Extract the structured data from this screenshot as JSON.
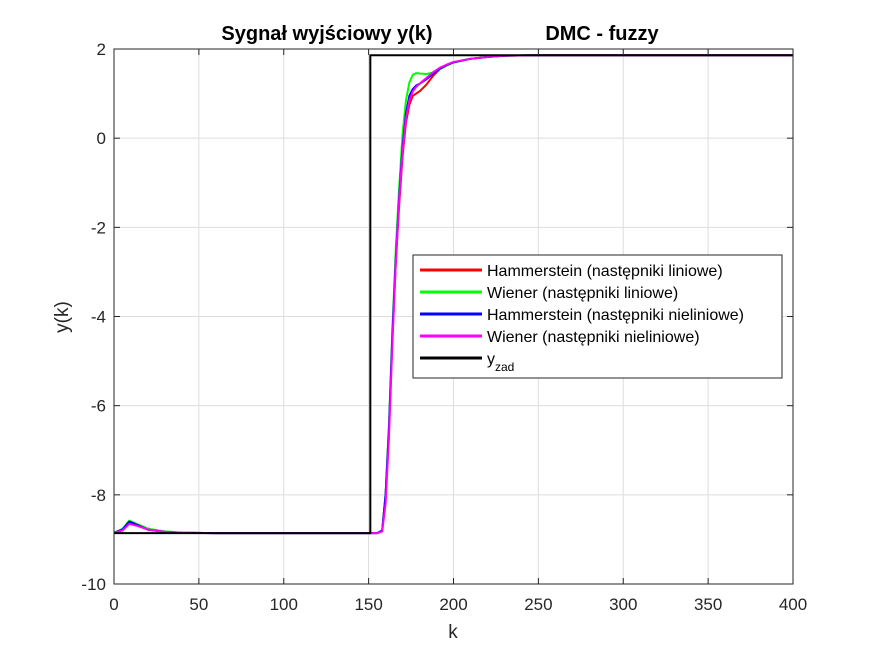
{
  "chart_data": {
    "type": "line",
    "title_left": "Sygnał wyjściowy y(k)",
    "title_right": "DMC - fuzzy",
    "xlabel": "k",
    "ylabel": "y(k)",
    "xlim": [
      0,
      400
    ],
    "ylim": [
      -10,
      2
    ],
    "xticks": [
      0,
      50,
      100,
      150,
      200,
      250,
      300,
      350,
      400
    ],
    "yticks": [
      -10,
      -8,
      -6,
      -4,
      -2,
      0,
      2
    ],
    "grid": true,
    "legend_position": "center-right",
    "series": [
      {
        "name": "Hammerstein (następniki liniowe)",
        "color": "#ff0000",
        "x": [
          0,
          5,
          9,
          14,
          20,
          30,
          40,
          60,
          100,
          150,
          155,
          158,
          160,
          162,
          164,
          166,
          168,
          170,
          172,
          174,
          176,
          178,
          180,
          184,
          188,
          192,
          196,
          200,
          210,
          220,
          230,
          250,
          300,
          400
        ],
        "y": [
          -8.85,
          -8.78,
          -8.6,
          -8.68,
          -8.78,
          -8.83,
          -8.85,
          -8.86,
          -8.86,
          -8.86,
          -8.86,
          -8.8,
          -8.0,
          -6.5,
          -4.5,
          -2.8,
          -1.5,
          -0.4,
          0.35,
          0.75,
          0.95,
          1.0,
          1.05,
          1.2,
          1.4,
          1.55,
          1.63,
          1.7,
          1.78,
          1.82,
          1.85,
          1.86,
          1.86,
          1.86
        ]
      },
      {
        "name": "Wiener (następniki liniowe)",
        "color": "#00ff00",
        "x": [
          0,
          5,
          9,
          14,
          20,
          30,
          40,
          60,
          100,
          150,
          155,
          158,
          160,
          162,
          164,
          166,
          168,
          170,
          172,
          174,
          176,
          178,
          180,
          184,
          188,
          192,
          196,
          200,
          210,
          220,
          230,
          250,
          300,
          400
        ],
        "y": [
          -8.85,
          -8.76,
          -8.58,
          -8.66,
          -8.76,
          -8.82,
          -8.85,
          -8.86,
          -8.86,
          -8.86,
          -8.86,
          -8.8,
          -8.0,
          -6.4,
          -4.3,
          -2.5,
          -1.1,
          0.1,
          0.85,
          1.25,
          1.42,
          1.46,
          1.45,
          1.44,
          1.47,
          1.55,
          1.63,
          1.7,
          1.78,
          1.82,
          1.85,
          1.86,
          1.86,
          1.86
        ]
      },
      {
        "name": "Hammerstein (następniki nieliniowe)",
        "color": "#0000ff",
        "x": [
          0,
          5,
          9,
          14,
          20,
          30,
          40,
          60,
          100,
          150,
          155,
          158,
          160,
          162,
          164,
          166,
          168,
          170,
          172,
          174,
          176,
          178,
          180,
          184,
          188,
          192,
          196,
          200,
          210,
          220,
          230,
          250,
          300,
          400
        ],
        "y": [
          -8.85,
          -8.78,
          -8.6,
          -8.68,
          -8.78,
          -8.83,
          -8.85,
          -8.86,
          -8.86,
          -8.86,
          -8.86,
          -8.8,
          -8.0,
          -6.5,
          -4.4,
          -2.7,
          -1.3,
          -0.2,
          0.55,
          0.95,
          1.1,
          1.18,
          1.22,
          1.32,
          1.45,
          1.56,
          1.64,
          1.7,
          1.78,
          1.82,
          1.85,
          1.86,
          1.86,
          1.86
        ]
      },
      {
        "name": "Wiener (następniki nieliniowe)",
        "color": "#ff00ff",
        "x": [
          0,
          5,
          9,
          14,
          20,
          30,
          40,
          60,
          100,
          150,
          155,
          158,
          160,
          162,
          164,
          166,
          168,
          170,
          172,
          174,
          176,
          178,
          180,
          184,
          188,
          192,
          196,
          200,
          210,
          220,
          230,
          250,
          300,
          400
        ],
        "y": [
          -8.85,
          -8.8,
          -8.65,
          -8.7,
          -8.78,
          -8.83,
          -8.85,
          -8.86,
          -8.86,
          -8.86,
          -8.86,
          -8.82,
          -8.2,
          -6.7,
          -4.6,
          -2.8,
          -1.4,
          -0.3,
          0.45,
          0.85,
          1.05,
          1.15,
          1.22,
          1.35,
          1.48,
          1.58,
          1.65,
          1.71,
          1.78,
          1.82,
          1.85,
          1.86,
          1.86,
          1.86
        ]
      },
      {
        "name": "y",
        "name_subscript": "zad",
        "color": "#000000",
        "x": [
          0,
          151,
          151,
          400
        ],
        "y": [
          -8.86,
          -8.86,
          1.86,
          1.86
        ]
      }
    ]
  }
}
